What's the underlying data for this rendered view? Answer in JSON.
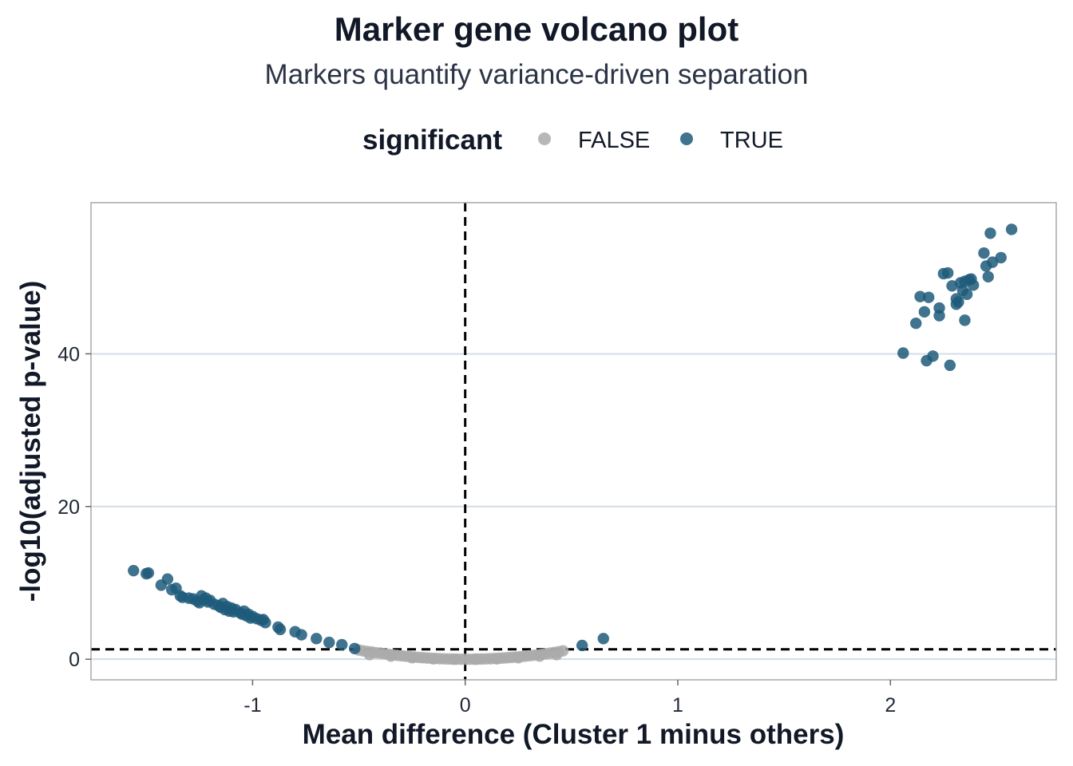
{
  "chart_data": {
    "type": "scatter",
    "title": "Marker gene volcano plot",
    "subtitle": "Markers quantify variance-driven separation",
    "xlabel": "Mean difference (Cluster 1 minus others)",
    "ylabel": "-log10(adjusted p-value)",
    "xlim": [
      -1.76,
      2.78
    ],
    "ylim": [
      -2.7,
      59.8
    ],
    "x_ticks": [
      -1,
      0,
      1,
      2
    ],
    "x_tick_labels": [
      "-1",
      "0",
      "1",
      "2"
    ],
    "y_ticks": [
      0,
      20,
      40
    ],
    "y_tick_labels": [
      "0",
      "20",
      "40"
    ],
    "grid": "horizontal major lines",
    "reference_lines": {
      "x": 0,
      "y": 1.3,
      "style": "dashed"
    },
    "legend": {
      "title": "significant",
      "position": "top",
      "entries": [
        {
          "label": "FALSE",
          "color": "#aaaaaa"
        },
        {
          "label": "TRUE",
          "color": "#1e5a7a"
        }
      ]
    },
    "series": [
      {
        "name": "FALSE",
        "color": "#aaaaaa",
        "points": [
          [
            -0.5,
            1.2
          ],
          [
            -0.48,
            1.1
          ],
          [
            -0.46,
            1.0
          ],
          [
            -0.44,
            0.95
          ],
          [
            -0.42,
            0.85
          ],
          [
            -0.4,
            0.8
          ],
          [
            -0.38,
            0.72
          ],
          [
            -0.36,
            0.64
          ],
          [
            -0.34,
            0.57
          ],
          [
            -0.32,
            0.51
          ],
          [
            -0.3,
            0.45
          ],
          [
            -0.28,
            0.39
          ],
          [
            -0.26,
            0.34
          ],
          [
            -0.24,
            0.29
          ],
          [
            -0.22,
            0.24
          ],
          [
            -0.2,
            0.2
          ],
          [
            -0.18,
            0.16
          ],
          [
            -0.16,
            0.13
          ],
          [
            -0.14,
            0.1
          ],
          [
            -0.12,
            0.07
          ],
          [
            -0.1,
            0.05
          ],
          [
            -0.08,
            0.03
          ],
          [
            -0.06,
            0.02
          ],
          [
            -0.04,
            0.01
          ],
          [
            -0.02,
            0.0
          ],
          [
            0.0,
            0.0
          ],
          [
            0.02,
            0.0
          ],
          [
            0.04,
            0.01
          ],
          [
            0.06,
            0.02
          ],
          [
            0.08,
            0.03
          ],
          [
            0.1,
            0.05
          ],
          [
            0.12,
            0.07
          ],
          [
            0.14,
            0.1
          ],
          [
            0.16,
            0.13
          ],
          [
            0.18,
            0.16
          ],
          [
            0.2,
            0.2
          ],
          [
            0.22,
            0.24
          ],
          [
            0.24,
            0.29
          ],
          [
            0.26,
            0.34
          ],
          [
            0.28,
            0.39
          ],
          [
            0.3,
            0.45
          ],
          [
            0.32,
            0.51
          ],
          [
            0.34,
            0.57
          ],
          [
            0.36,
            0.64
          ],
          [
            0.38,
            0.72
          ],
          [
            0.4,
            0.8
          ],
          [
            0.42,
            0.88
          ],
          [
            0.44,
            0.97
          ],
          [
            0.46,
            1.1
          ],
          [
            -0.45,
            0.6
          ],
          [
            -0.35,
            0.4
          ],
          [
            -0.25,
            0.2
          ],
          [
            -0.15,
            0.05
          ],
          [
            -0.05,
            0.0
          ],
          [
            0.05,
            0.0
          ],
          [
            0.15,
            0.05
          ],
          [
            0.25,
            0.2
          ],
          [
            0.35,
            0.4
          ],
          [
            0.43,
            0.6
          ]
        ]
      },
      {
        "name": "TRUE",
        "color": "#1e5a7a",
        "points": [
          [
            -1.56,
            11.6
          ],
          [
            -1.5,
            11.2
          ],
          [
            -1.49,
            11.3
          ],
          [
            -1.43,
            9.7
          ],
          [
            -1.4,
            10.5
          ],
          [
            -1.38,
            9.1
          ],
          [
            -1.36,
            9.3
          ],
          [
            -1.34,
            8.3
          ],
          [
            -1.33,
            8.1
          ],
          [
            -1.3,
            8.0
          ],
          [
            -1.28,
            7.9
          ],
          [
            -1.26,
            7.6
          ],
          [
            -1.25,
            7.4
          ],
          [
            -1.24,
            8.3
          ],
          [
            -1.23,
            7.8
          ],
          [
            -1.22,
            8.0
          ],
          [
            -1.21,
            7.5
          ],
          [
            -1.2,
            7.7
          ],
          [
            -1.18,
            7.2
          ],
          [
            -1.16,
            7.0
          ],
          [
            -1.15,
            6.8
          ],
          [
            -1.14,
            7.3
          ],
          [
            -1.13,
            6.5
          ],
          [
            -1.12,
            6.9
          ],
          [
            -1.11,
            6.3
          ],
          [
            -1.1,
            6.7
          ],
          [
            -1.09,
            6.2
          ],
          [
            -1.08,
            6.5
          ],
          [
            -1.06,
            6.1
          ],
          [
            -1.05,
            5.9
          ],
          [
            -1.04,
            6.3
          ],
          [
            -1.03,
            5.7
          ],
          [
            -1.02,
            5.9
          ],
          [
            -1.01,
            5.4
          ],
          [
            -1.0,
            5.6
          ],
          [
            -0.98,
            5.3
          ],
          [
            -0.96,
            5.1
          ],
          [
            -0.95,
            5.2
          ],
          [
            -0.94,
            4.8
          ],
          [
            -0.88,
            4.2
          ],
          [
            -0.87,
            3.9
          ],
          [
            -0.8,
            3.6
          ],
          [
            -0.77,
            3.2
          ],
          [
            -0.7,
            2.7
          ],
          [
            -0.64,
            2.2
          ],
          [
            -0.58,
            1.9
          ],
          [
            -0.52,
            1.4
          ],
          [
            0.55,
            1.8
          ],
          [
            0.65,
            2.7
          ],
          [
            2.06,
            40.1
          ],
          [
            2.12,
            44.0
          ],
          [
            2.14,
            47.5
          ],
          [
            2.16,
            45.5
          ],
          [
            2.17,
            39.1
          ],
          [
            2.18,
            47.4
          ],
          [
            2.2,
            39.7
          ],
          [
            2.23,
            45.0
          ],
          [
            2.23,
            46.0
          ],
          [
            2.25,
            50.5
          ],
          [
            2.27,
            50.6
          ],
          [
            2.28,
            38.5
          ],
          [
            2.29,
            48.9
          ],
          [
            2.31,
            46.5
          ],
          [
            2.31,
            47.2
          ],
          [
            2.32,
            46.8
          ],
          [
            2.33,
            49.3
          ],
          [
            2.34,
            48.3
          ],
          [
            2.35,
            44.4
          ],
          [
            2.35,
            49.5
          ],
          [
            2.36,
            47.8
          ],
          [
            2.37,
            49.7
          ],
          [
            2.38,
            49.8
          ],
          [
            2.39,
            49.0
          ],
          [
            2.44,
            53.2
          ],
          [
            2.45,
            51.5
          ],
          [
            2.46,
            50.1
          ],
          [
            2.47,
            55.8
          ],
          [
            2.48,
            52.0
          ],
          [
            2.52,
            52.6
          ],
          [
            2.57,
            56.3
          ]
        ]
      }
    ]
  }
}
